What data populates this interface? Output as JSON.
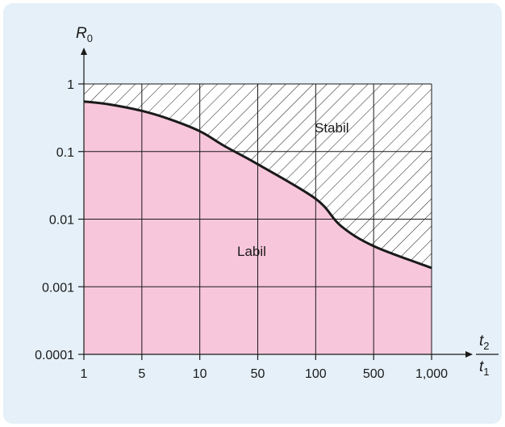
{
  "chart_data": {
    "type": "area",
    "title": "",
    "y_axis": {
      "label_main": "R",
      "label_sub": "0",
      "scale": "log",
      "range": [
        0.0001,
        1
      ],
      "ticks": [
        {
          "value": 1,
          "label": "1"
        },
        {
          "value": 0.1,
          "label": "0.1"
        },
        {
          "value": 0.01,
          "label": "0.01"
        },
        {
          "value": 0.001,
          "label": "0.001"
        },
        {
          "value": 0.0001,
          "label": "0.0001"
        }
      ]
    },
    "x_axis": {
      "label_num_main": "t",
      "label_num_sub": "2",
      "label_den_main": "t",
      "label_den_sub": "1",
      "scale": "log-1-5-10",
      "ticks": [
        {
          "value": 1,
          "label": "1"
        },
        {
          "value": 5,
          "label": "5"
        },
        {
          "value": 10,
          "label": "10"
        },
        {
          "value": 50,
          "label": "50"
        },
        {
          "value": 100,
          "label": "100"
        },
        {
          "value": 500,
          "label": "500"
        },
        {
          "value": 1000,
          "label": "1,000"
        }
      ]
    },
    "grid": true,
    "regions": [
      {
        "label": "Stabil",
        "fill": "hatched",
        "position": "above-curve"
      },
      {
        "label": "Labil",
        "fill": "#f7c6da",
        "position": "below-curve"
      }
    ],
    "series": [
      {
        "x": [
          1,
          2,
          5,
          7,
          10,
          20,
          50,
          100,
          200,
          500,
          1000
        ],
        "y": [
          0.55,
          0.5,
          0.4,
          0.3,
          0.2,
          0.12,
          0.065,
          0.02,
          0.008,
          0.004,
          0.0019
        ]
      }
    ],
    "colors": {
      "labil_fill": "#f7c6da",
      "panel_bg": "#e5f0f8",
      "curve": "#1a1a1a"
    }
  }
}
